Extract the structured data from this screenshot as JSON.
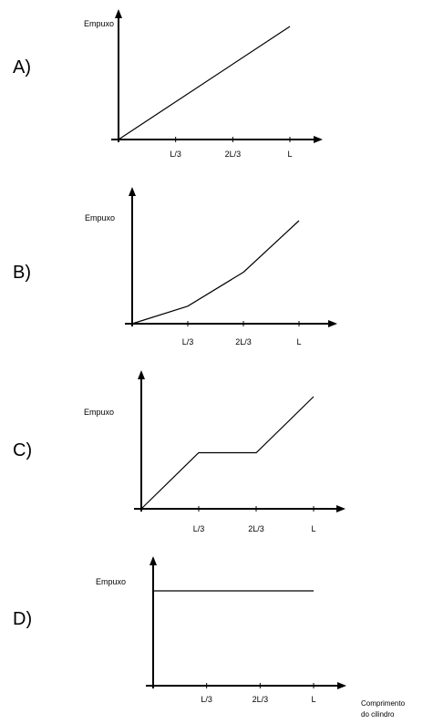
{
  "x_axis_label_lines": [
    "Comprimento",
    "do cilindro"
  ],
  "chart_data": [
    {
      "type": "line",
      "option": "A)",
      "ylabel": "Empuxo",
      "ticks": [
        "L/3",
        "2L/3",
        "L"
      ],
      "x": [
        0,
        1
      ],
      "y": [
        0,
        1
      ]
    },
    {
      "type": "line",
      "option": "B)",
      "ylabel": "Empuxo",
      "ticks": [
        "L/3",
        "2L/3",
        "L"
      ],
      "x": [
        0,
        0.333,
        0.667,
        1
      ],
      "y": [
        0,
        0.17,
        0.5,
        1
      ]
    },
    {
      "type": "line",
      "option": "C)",
      "ylabel": "Empuxo",
      "ticks": [
        "L/3",
        "2L/3",
        "L"
      ],
      "x": [
        0,
        0.333,
        0.667,
        1
      ],
      "y": [
        0,
        0.5,
        0.5,
        1
      ]
    },
    {
      "type": "line",
      "option": "D)",
      "ylabel": "Empuxo",
      "ticks": [
        "L/3",
        "2L/3",
        "L"
      ],
      "x": [
        0,
        1
      ],
      "y": [
        1,
        1
      ]
    }
  ]
}
